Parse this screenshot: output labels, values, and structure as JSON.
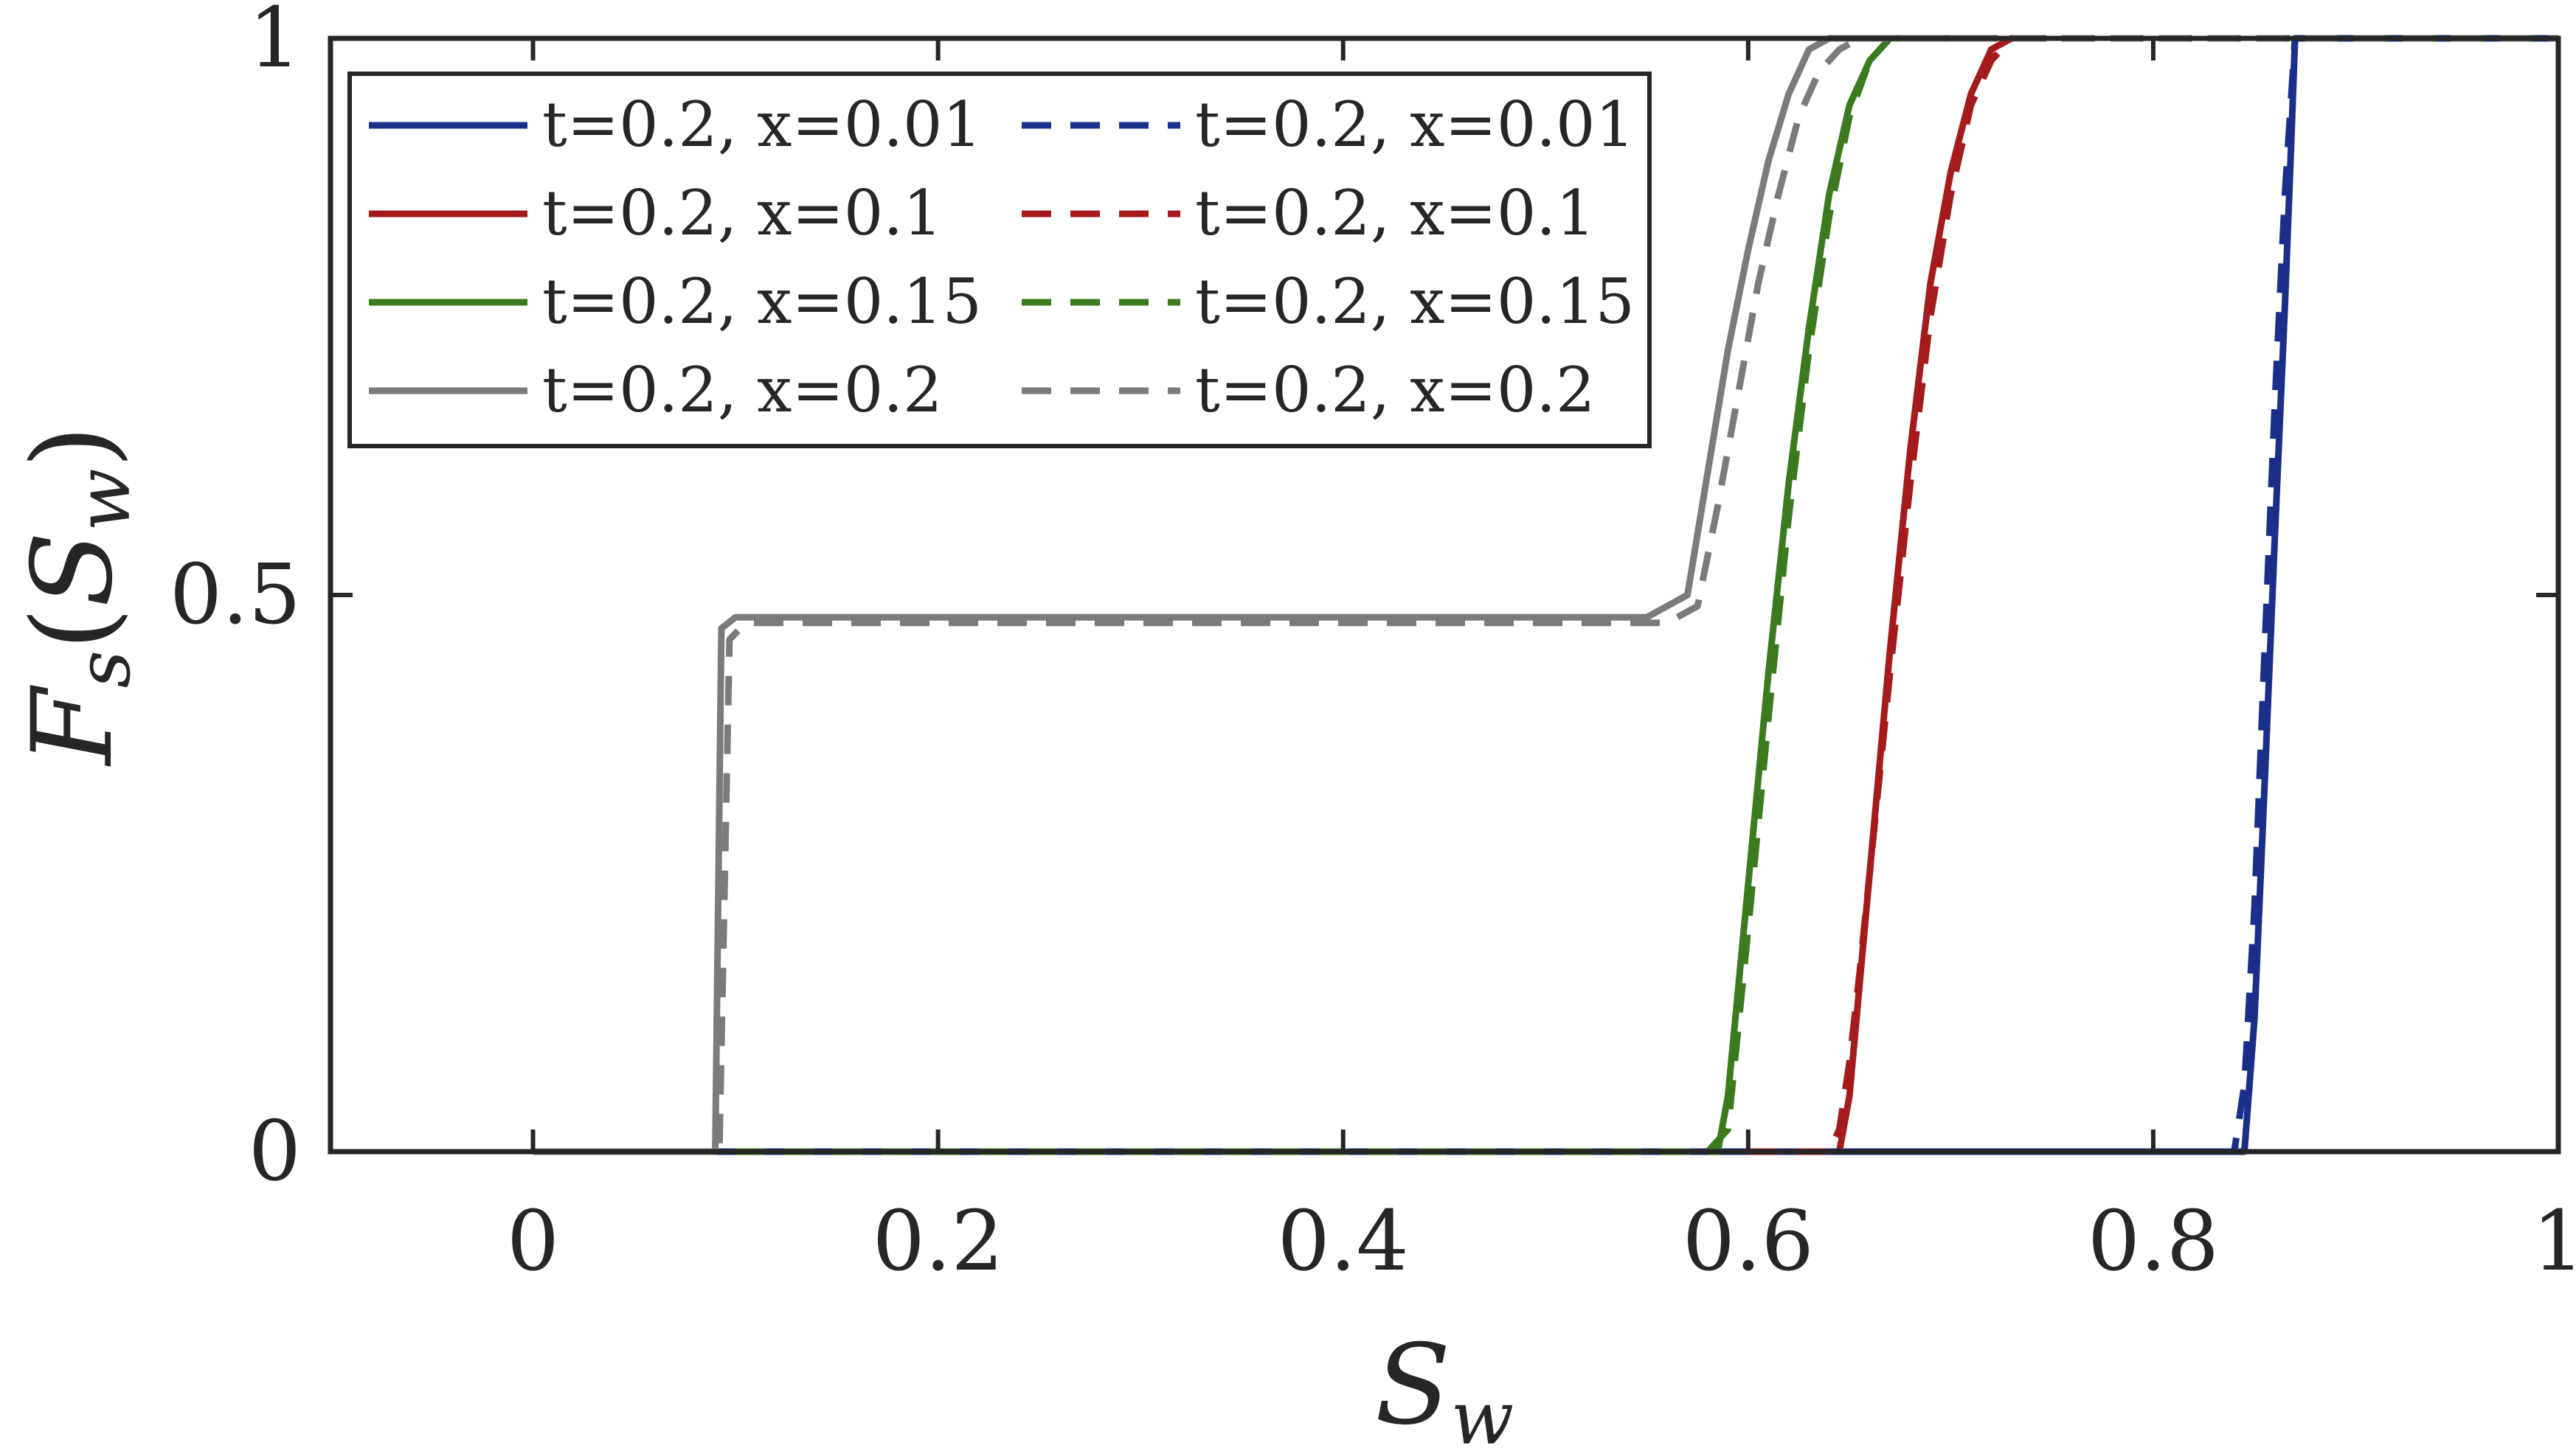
{
  "chart_data": {
    "type": "line",
    "xlabel": "S_w",
    "ylabel": "F_s(S_w)",
    "xlim": [
      -0.1,
      1
    ],
    "ylim": [
      0,
      1
    ],
    "xticks": [
      {
        "value": 0,
        "label": "0"
      },
      {
        "value": 0.2,
        "label": "0.2"
      },
      {
        "value": 0.4,
        "label": "0.4"
      },
      {
        "value": 0.6,
        "label": "0.6"
      },
      {
        "value": 0.8,
        "label": "0.8"
      },
      {
        "value": 1,
        "label": "1"
      }
    ],
    "yticks": [
      {
        "value": 0,
        "label": "0"
      },
      {
        "value": 0.5,
        "label": "0.5"
      },
      {
        "value": 1,
        "label": "1"
      }
    ],
    "grid": false,
    "legend_position": "top-left",
    "series": [
      {
        "name": "t=0.2, x=0.01",
        "color": "#1a2f8a",
        "style": "solid",
        "x": [
          0,
          0.845,
          0.85,
          0.855,
          0.86,
          0.865,
          0.868,
          0.87,
          1
        ],
        "y": [
          0,
          0,
          0.12,
          0.33,
          0.55,
          0.76,
          0.9,
          1,
          1
        ]
      },
      {
        "name": "t=0.2, x=0.1",
        "color": "#a51b1b",
        "style": "solid",
        "x": [
          0.64,
          0.645,
          0.65,
          0.655,
          0.66,
          0.67,
          0.68,
          0.69,
          0.7,
          0.71,
          0.72,
          0.73,
          0.74
        ],
        "y": [
          0,
          0,
          0.05,
          0.15,
          0.25,
          0.45,
          0.63,
          0.78,
          0.88,
          0.95,
          0.99,
          1,
          1
        ]
      },
      {
        "name": "t=0.2, x=0.15",
        "color": "#3b7a1e",
        "style": "solid",
        "x": [
          0.58,
          0.585,
          0.59,
          0.6,
          0.61,
          0.62,
          0.63,
          0.64,
          0.65,
          0.66,
          0.67,
          0.68
        ],
        "y": [
          0,
          0,
          0.05,
          0.24,
          0.43,
          0.6,
          0.74,
          0.86,
          0.94,
          0.98,
          1,
          1
        ]
      },
      {
        "name": "t=0.2, x=0.2",
        "color": "#7b7b7b",
        "style": "solid",
        "x": [
          0,
          0.09,
          0.093,
          0.1,
          0.2,
          0.4,
          0.55,
          0.57,
          0.58,
          0.59,
          0.6,
          0.61,
          0.62,
          0.63,
          0.64,
          0.65,
          0.7,
          0.72
        ],
        "y": [
          0,
          0,
          0.47,
          0.48,
          0.48,
          0.48,
          0.48,
          0.5,
          0.61,
          0.72,
          0.81,
          0.89,
          0.95,
          0.99,
          1,
          1,
          1,
          1
        ]
      },
      {
        "name": "t=0.2, x=0.01",
        "color": "#1a2f8a",
        "style": "dashed",
        "x": [
          0.64,
          0.84,
          0.845,
          0.85,
          0.855,
          0.86,
          0.865,
          0.87,
          1
        ],
        "y": [
          0,
          0,
          0.06,
          0.22,
          0.45,
          0.67,
          0.86,
          1,
          1
        ]
      },
      {
        "name": "t=0.2, x=0.1",
        "color": "#a51b1b",
        "style": "dashed",
        "x": [
          0.6,
          0.64,
          0.645,
          0.65,
          0.655,
          0.66,
          0.67,
          0.68,
          0.69,
          0.7,
          0.71,
          0.72,
          0.73,
          0.74
        ],
        "y": [
          0,
          0,
          0.02,
          0.08,
          0.16,
          0.25,
          0.43,
          0.6,
          0.75,
          0.86,
          0.94,
          0.98,
          1,
          1
        ]
      },
      {
        "name": "t=0.2, x=0.15",
        "color": "#3b7a1e",
        "style": "dashed",
        "x": [
          0.1,
          0.5,
          0.58,
          0.59,
          0.6,
          0.61,
          0.62,
          0.63,
          0.64,
          0.65,
          0.66,
          0.67,
          0.68,
          1
        ],
        "y": [
          0,
          0,
          0,
          0.02,
          0.2,
          0.39,
          0.57,
          0.72,
          0.84,
          0.93,
          0.98,
          1,
          1,
          1
        ]
      },
      {
        "name": "t=0.2, x=0.2",
        "color": "#7b7b7b",
        "style": "dashed",
        "x": [
          0,
          0.092,
          0.097,
          0.105,
          0.2,
          0.4,
          0.56,
          0.575,
          0.585,
          0.595,
          0.605,
          0.615,
          0.625,
          0.635,
          0.645,
          0.655,
          0.7,
          1
        ],
        "y": [
          0,
          0,
          0.46,
          0.475,
          0.475,
          0.475,
          0.475,
          0.49,
          0.58,
          0.68,
          0.78,
          0.86,
          0.93,
          0.97,
          0.99,
          1,
          1,
          1
        ]
      }
    ]
  }
}
